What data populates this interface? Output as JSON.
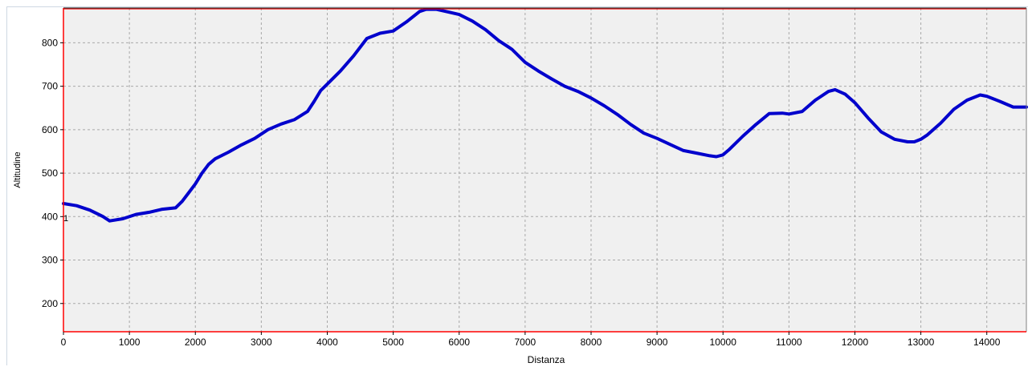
{
  "chart_data": {
    "type": "line",
    "xlabel": "Distanza",
    "ylabel": "Altitudine",
    "xlim": [
      0,
      14600
    ],
    "ylim": [
      135,
      880
    ],
    "x_ticks": [
      0,
      1000,
      2000,
      3000,
      4000,
      5000,
      6000,
      7000,
      8000,
      9000,
      10000,
      11000,
      12000,
      13000,
      14000
    ],
    "y_ticks": [
      200,
      300,
      400,
      500,
      600,
      700,
      800
    ],
    "grid": true,
    "start_marker_label": "1",
    "max_line_value": 878,
    "series": [
      {
        "color": "#0000cc",
        "x": [
          0,
          200,
          400,
          600,
          700,
          900,
          1100,
          1300,
          1500,
          1700,
          1800,
          1900,
          2000,
          2100,
          2200,
          2300,
          2500,
          2700,
          2900,
          3100,
          3300,
          3500,
          3700,
          3800,
          3900,
          4000,
          4200,
          4400,
          4600,
          4800,
          5000,
          5200,
          5400,
          5500,
          5650,
          5800,
          6000,
          6200,
          6400,
          6600,
          6800,
          7000,
          7200,
          7400,
          7600,
          7800,
          8000,
          8200,
          8400,
          8600,
          8800,
          9000,
          9200,
          9400,
          9600,
          9800,
          9900,
          10000,
          10100,
          10300,
          10500,
          10700,
          10900,
          11000,
          11200,
          11400,
          11600,
          11700,
          11850,
          12000,
          12200,
          12400,
          12600,
          12800,
          12900,
          13000,
          13100,
          13300,
          13500,
          13700,
          13900,
          14000,
          14200,
          14400,
          14600
        ],
        "y": [
          430,
          425,
          415,
          400,
          390,
          395,
          405,
          410,
          417,
          420,
          435,
          455,
          475,
          500,
          520,
          533,
          548,
          565,
          580,
          600,
          613,
          623,
          642,
          665,
          690,
          705,
          735,
          770,
          810,
          822,
          827,
          848,
          872,
          877,
          877,
          872,
          865,
          850,
          830,
          805,
          785,
          755,
          735,
          717,
          700,
          688,
          673,
          655,
          635,
          612,
          592,
          580,
          566,
          552,
          546,
          540,
          538,
          542,
          555,
          585,
          612,
          637,
          638,
          636,
          642,
          668,
          688,
          692,
          682,
          662,
          627,
          595,
          578,
          572,
          572,
          578,
          588,
          615,
          647,
          668,
          680,
          677,
          665,
          652,
          652
        ]
      }
    ]
  }
}
